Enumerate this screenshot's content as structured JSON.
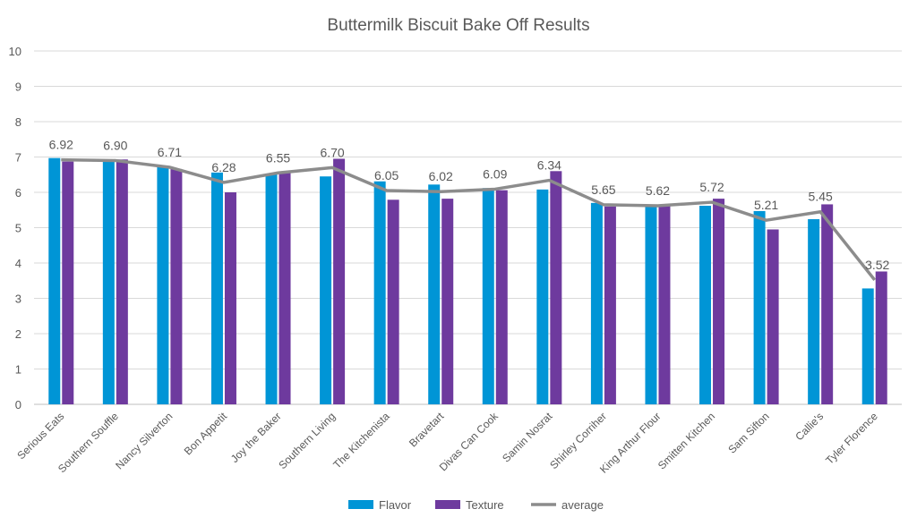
{
  "chart_data": {
    "type": "bar",
    "title": "Buttermilk Biscuit Bake Off Results",
    "xlabel": "",
    "ylabel": "",
    "ylim": [
      0,
      10
    ],
    "yticks": [
      "0",
      "1",
      "2",
      "3",
      "4",
      "5",
      "6",
      "7",
      "8",
      "9",
      "10"
    ],
    "grid": true,
    "legend_position": "bottom",
    "categories": [
      "Serious Eats",
      "Southern Souffle",
      "Nancy Silverton",
      "Bon Appetit",
      "Joy the Baker",
      "Southern Living",
      "The Kitchenista",
      "Bravetart",
      "Divas Can Cook",
      "Samin Nosrat",
      "Shirley Corriher",
      "King Arthur Flour",
      "Smitten Kitchen",
      "Sam Sifton",
      "Callie's",
      "Tyler Florence"
    ],
    "series": [
      {
        "name": "Flavor",
        "type": "bar",
        "color": "#0095d6",
        "values": [
          6.97,
          6.87,
          6.76,
          6.56,
          6.53,
          6.45,
          6.31,
          6.22,
          6.12,
          6.08,
          5.7,
          5.62,
          5.62,
          5.47,
          5.24,
          3.28
        ]
      },
      {
        "name": "Texture",
        "type": "bar",
        "color": "#6e3a9e",
        "values": [
          6.87,
          6.93,
          6.66,
          6.0,
          6.57,
          6.95,
          5.79,
          5.82,
          6.06,
          6.6,
          5.6,
          5.62,
          5.82,
          4.95,
          5.66,
          3.76
        ]
      },
      {
        "name": "average",
        "type": "line",
        "color": "#8c8c8c",
        "values": [
          6.92,
          6.9,
          6.71,
          6.28,
          6.55,
          6.7,
          6.05,
          6.02,
          6.09,
          6.34,
          5.65,
          5.62,
          5.72,
          5.21,
          5.45,
          3.52
        ],
        "labels": [
          "6.92",
          "6.90",
          "6.71",
          "6.28",
          "6.55",
          "6.70",
          "6.05",
          "6.02",
          "6.09",
          "6.34",
          "5.65",
          "5.62",
          "5.72",
          "5.21",
          "5.45",
          "3.52"
        ]
      }
    ]
  }
}
